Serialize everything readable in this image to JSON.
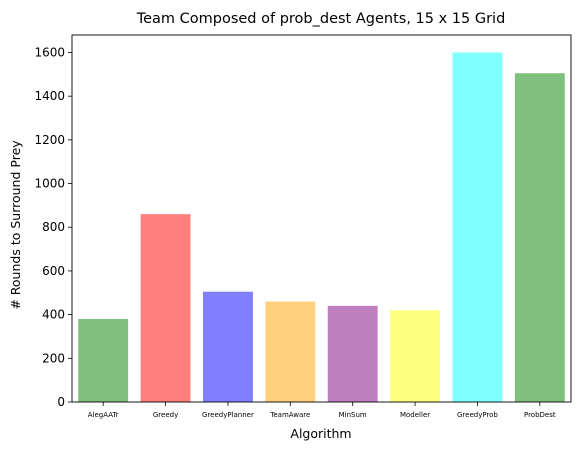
{
  "chart_data": {
    "type": "bar",
    "title": "Team Composed of prob_dest Agents, 15 x 15 Grid",
    "xlabel": "Algorithm",
    "ylabel": "# Rounds to Surround Prey",
    "categories": [
      "AlegAATr",
      "Greedy",
      "GreedyPlanner",
      "TeamAware",
      "MinSum",
      "Modeller",
      "GreedyProb",
      "ProbDest"
    ],
    "values": [
      380,
      860,
      505,
      460,
      440,
      420,
      1600,
      1505
    ],
    "colors": [
      "#7fc07f",
      "#ff7f7f",
      "#7f7fff",
      "#ffd17f",
      "#bf7fbf",
      "#ffff7f",
      "#7fffff",
      "#7fc07f"
    ],
    "ylim": [
      0,
      1680
    ],
    "yticks": [
      0,
      200,
      400,
      600,
      800,
      1000,
      1200,
      1400,
      1600
    ],
    "grid": false,
    "legend": "none"
  }
}
